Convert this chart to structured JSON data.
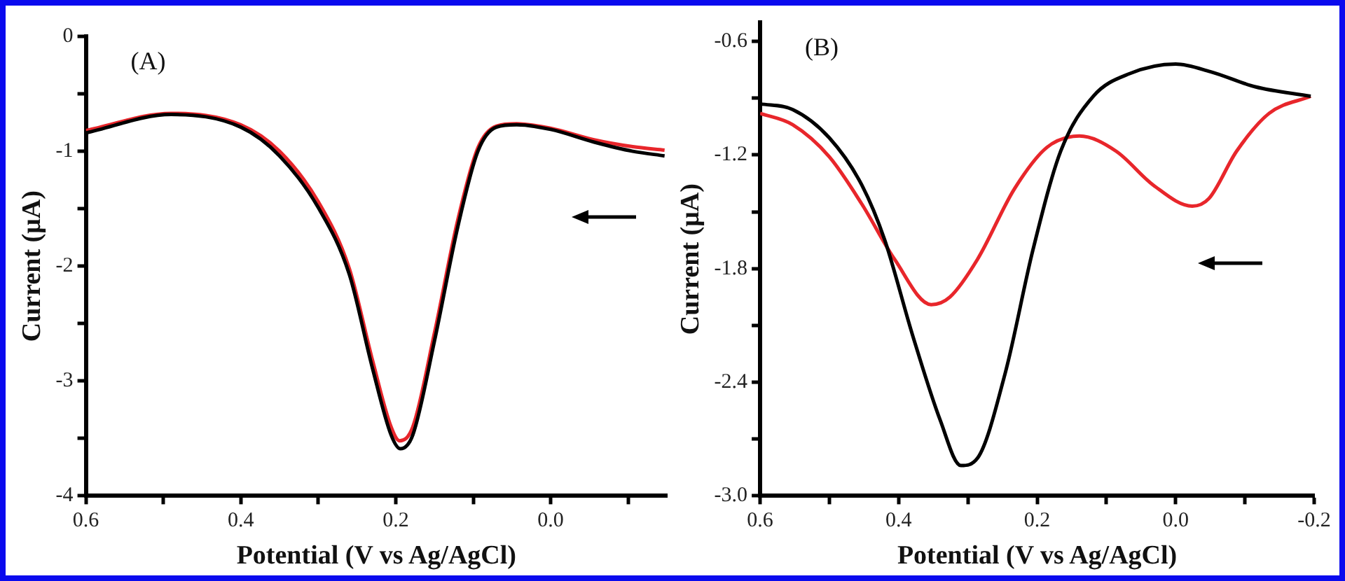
{
  "chart_data": [
    {
      "type": "line",
      "title": "(A)",
      "xlabel": "Potential (V vs Ag/AgCl)",
      "ylabel": "Current (μA)",
      "xlim": [
        0.6,
        -0.15
      ],
      "ylim": [
        -4,
        0
      ],
      "xticks": [
        0.6,
        {
          "value": 0.5,
          "label": null
        },
        0.4,
        {
          "value": 0.3,
          "label": null
        },
        0.2,
        {
          "value": 0.1,
          "label": null
        },
        {
          "value": 0,
          "label": "0.0"
        },
        {
          "value": -0.1,
          "label": null
        }
      ],
      "yticks": [
        {
          "value": -4,
          "label": "-4"
        },
        {
          "value": -3.5,
          "label": null
        },
        -3,
        {
          "value": -2.5,
          "label": null
        },
        -2,
        {
          "value": -1.5,
          "label": null
        },
        -1,
        {
          "value": -0.5,
          "label": null
        },
        0
      ],
      "grid": false,
      "marker": "none",
      "line_style": "solid",
      "series": [
        {
          "color": "#000000",
          "x": [
            0.6,
            0.49,
            0.4,
            0.35,
            0.3,
            0.26,
            0.23,
            0.206,
            0.194,
            0.178,
            0.15,
            0.12,
            0.094,
            0.07,
            0.044,
            0,
            -0.056,
            -0.106,
            -0.147
          ],
          "values": [
            -0.84,
            -0.68,
            -0.79,
            -1.04,
            -1.49,
            -2.07,
            -2.89,
            -3.47,
            -3.59,
            -3.47,
            -2.65,
            -1.66,
            -1.0,
            -0.79,
            -0.77,
            -0.81,
            -0.92,
            -1.0,
            -1.04
          ]
        },
        {
          "color": "#e8262b",
          "x": [
            0.6,
            0.49,
            0.4,
            0.35,
            0.3,
            0.26,
            0.23,
            0.206,
            0.195,
            0.178,
            0.15,
            0.12,
            0.094,
            0.07,
            0.044,
            0,
            -0.056,
            -0.106,
            -0.147
          ],
          "values": [
            -0.82,
            -0.67,
            -0.77,
            -1.0,
            -1.44,
            -2.02,
            -2.82,
            -3.4,
            -3.52,
            -3.4,
            -2.58,
            -1.6,
            -0.97,
            -0.78,
            -0.76,
            -0.8,
            -0.9,
            -0.96,
            -0.99
          ]
        }
      ]
    },
    {
      "type": "line",
      "title": "(B)",
      "xlabel": "Potential (V vs Ag/AgCl)",
      "ylabel": "Current (μA)",
      "xlim": [
        0.6,
        -0.2
      ],
      "ylim": [
        -3.0,
        -0.5
      ],
      "xticks": [
        0.6,
        {
          "value": 0.5,
          "label": null
        },
        0.4,
        {
          "value": 0.3,
          "label": null
        },
        0.2,
        {
          "value": 0.1,
          "label": null
        },
        {
          "value": 0,
          "label": "0.0"
        },
        {
          "value": -0.1,
          "label": null
        },
        -0.2
      ],
      "yticks": [
        {
          "value": -3.0,
          "label": "-3.0"
        },
        {
          "value": -2.7,
          "label": null
        },
        -2.4,
        {
          "value": -2.1,
          "label": null
        },
        -1.8,
        {
          "value": -1.5,
          "label": null
        },
        -1.2,
        {
          "value": -0.9,
          "label": null
        },
        -0.6
      ],
      "grid": false,
      "marker": "none",
      "line_style": "solid",
      "series": [
        {
          "color": "#000000",
          "x": [
            0.6,
            0.553,
            0.5,
            0.453,
            0.42,
            0.38,
            0.34,
            0.31,
            0.286,
            0.246,
            0.206,
            0.166,
            0.119,
            0.066,
            0,
            -0.05,
            -0.115,
            -0.195
          ],
          "values": [
            -0.93,
            -0.96,
            -1.11,
            -1.36,
            -1.65,
            -2.15,
            -2.6,
            -2.84,
            -2.8,
            -2.35,
            -1.7,
            -1.18,
            -0.89,
            -0.77,
            -0.72,
            -0.76,
            -0.84,
            -0.89
          ]
        },
        {
          "color": "#e8262b",
          "x": [
            0.6,
            0.553,
            0.5,
            0.453,
            0.406,
            0.353,
            0.326,
            0.286,
            0.233,
            0.186,
            0.139,
            0.086,
            0.032,
            -0.024,
            -0.048,
            -0.088,
            -0.135,
            -0.195
          ],
          "values": [
            -0.98,
            -1.04,
            -1.21,
            -1.46,
            -1.75,
            -1.99,
            -1.95,
            -1.75,
            -1.38,
            -1.16,
            -1.1,
            -1.18,
            -1.36,
            -1.47,
            -1.43,
            -1.18,
            -0.98,
            -0.89
          ]
        }
      ]
    }
  ]
}
